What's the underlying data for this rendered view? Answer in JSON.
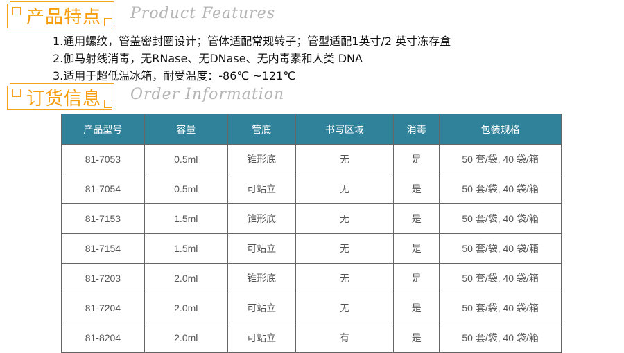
{
  "features_section": {
    "title_cn": "产品特点",
    "title_en": "Product Features",
    "items": [
      "1.通用螺纹，管盖密封圈设计；管体适配常规转子；管型适配1英寸/2 英寸冻存盒",
      "2.伽马射线消毒，无RNase、无DNase、无内毒素和人类 DNA",
      "3.适用于超低温冰箱，耐受温度：-86℃ ~121℃"
    ]
  },
  "order_section": {
    "title_cn": "订货信息",
    "title_en": "Order Information"
  },
  "colors": {
    "accent": "#f5a31c",
    "header": "#2f8299"
  },
  "table": {
    "headers": [
      "产品型号",
      "容量",
      "管底",
      "书写区域",
      "消毒",
      "包装规格"
    ],
    "rows": [
      [
        "81-7053",
        "0.5ml",
        "锥形底",
        "无",
        "是",
        "50 套/袋, 40 袋/箱"
      ],
      [
        "81-7054",
        "0.5ml",
        "可站立",
        "无",
        "是",
        "50 套/袋, 40 袋/箱"
      ],
      [
        "81-7153",
        "1.5ml",
        "锥形底",
        "无",
        "是",
        "50 套/袋, 40 袋/箱"
      ],
      [
        "81-7154",
        "1.5ml",
        "可站立",
        "无",
        "是",
        "50 套/袋, 40 袋/箱"
      ],
      [
        "81-7203",
        "2.0ml",
        "锥形底",
        "无",
        "是",
        "50 套/袋, 40 袋/箱"
      ],
      [
        "81-7204",
        "2.0ml",
        "可站立",
        "无",
        "是",
        "50 套/袋, 40 袋/箱"
      ],
      [
        "81-8204",
        "2.0ml",
        "可站立",
        "有",
        "是",
        "50 套/袋, 40 袋/箱"
      ]
    ]
  }
}
